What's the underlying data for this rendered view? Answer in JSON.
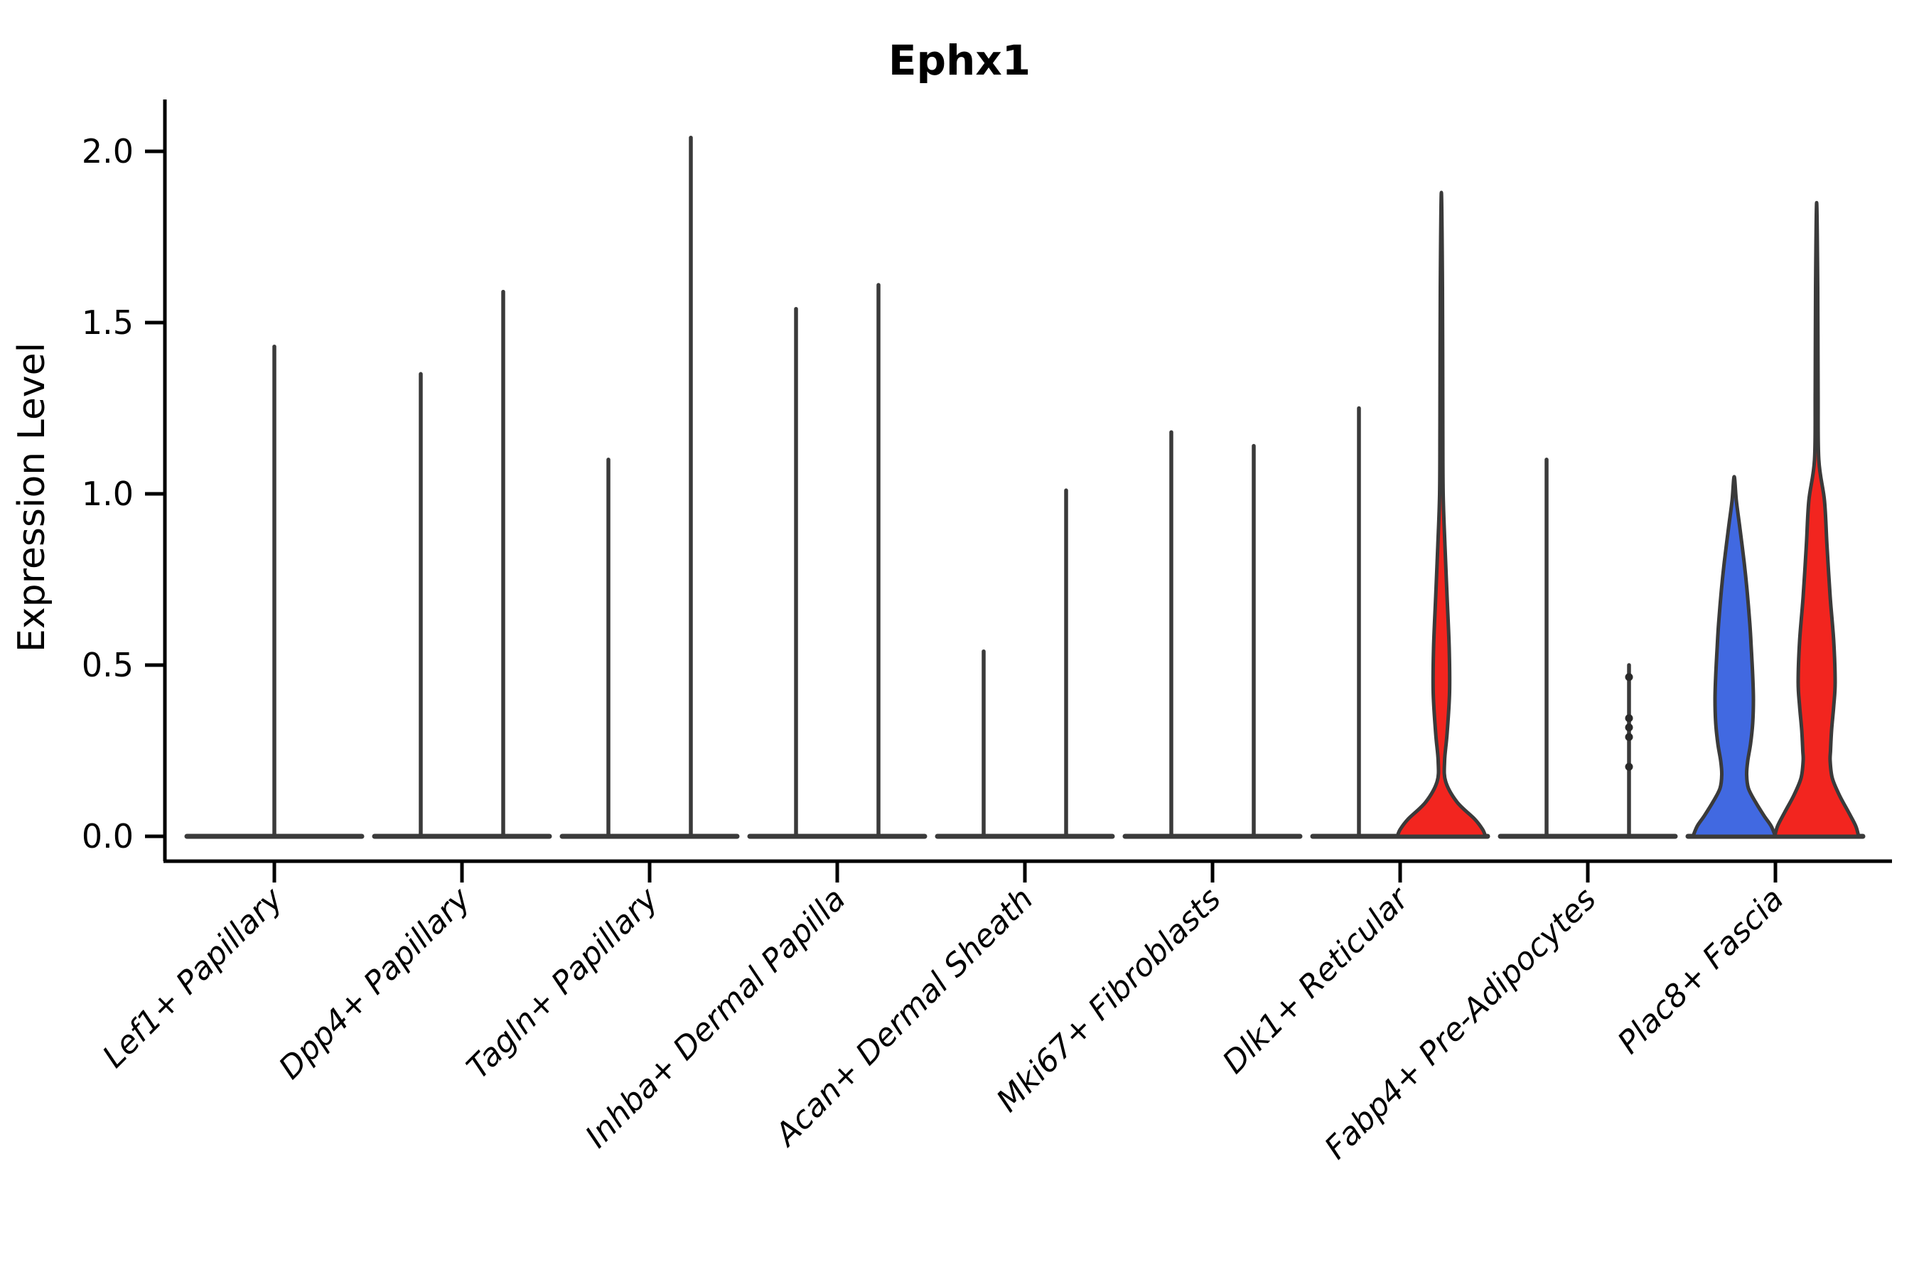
{
  "chart_data": {
    "type": "violin",
    "title": "Ephx1",
    "ylabel": "Expression Level",
    "xlabel": "",
    "yticks": [
      "0.0",
      "0.5",
      "1.0",
      "1.5",
      "2.0"
    ],
    "ytick_values": [
      0.0,
      0.5,
      1.0,
      1.5,
      2.0
    ],
    "ylim": [
      -0.07,
      2.12
    ],
    "grid": false,
    "legend": "none",
    "colors": {
      "blue_fill": "#4169E1",
      "red_fill": "#F2251F",
      "outline": "#3A3A3A",
      "axis": "#000000",
      "point": "#2A2A2A"
    },
    "categories": [
      "Lef1+ Papillary",
      "Dpp4+ Papillary",
      "Tagln+ Papillary",
      "Inhba+ Dermal Papilla",
      "Acan+ Dermal Sheath",
      "Mki67+ Fibroblasts",
      "Dlk1+ Reticular",
      "Fabp4+ Pre-Adipocytes",
      "Plac8+ Fascia"
    ],
    "violins": [
      [
        {
          "offset": 0,
          "kind": "spike",
          "max": 1.43,
          "color": "outline"
        }
      ],
      [
        {
          "offset": -58,
          "kind": "spike",
          "max": 1.35,
          "color": "outline"
        },
        {
          "offset": 58,
          "kind": "spike",
          "max": 1.59,
          "color": "outline"
        }
      ],
      [
        {
          "offset": -58,
          "kind": "spike",
          "max": 1.1,
          "color": "outline"
        },
        {
          "offset": 58,
          "kind": "spike",
          "max": 2.04,
          "color": "outline"
        }
      ],
      [
        {
          "offset": -58,
          "kind": "spike",
          "max": 1.54,
          "color": "outline"
        },
        {
          "offset": 58,
          "kind": "spike",
          "max": 1.61,
          "color": "outline"
        }
      ],
      [
        {
          "offset": -58,
          "kind": "spike",
          "max": 0.54,
          "color": "outline"
        },
        {
          "offset": 58,
          "kind": "spike",
          "max": 1.01,
          "color": "outline"
        }
      ],
      [
        {
          "offset": -58,
          "kind": "spike",
          "max": 1.18,
          "color": "outline"
        },
        {
          "offset": 58,
          "kind": "spike",
          "max": 1.14,
          "color": "outline"
        }
      ],
      [
        {
          "offset": -58,
          "kind": "spike",
          "max": 1.25,
          "color": "outline"
        },
        {
          "offset": 58,
          "kind": "violin",
          "max": 1.88,
          "profile": "dlk1_red",
          "fill": "red_fill"
        }
      ],
      [
        {
          "offset": -58,
          "kind": "spike",
          "max": 1.1,
          "color": "outline"
        },
        {
          "offset": 58,
          "kind": "spike",
          "max": 0.5,
          "color": "outline",
          "dots": [
            0.465,
            0.345,
            0.318,
            0.29,
            0.203
          ]
        }
      ],
      [
        {
          "offset": -58,
          "kind": "violin",
          "max": 1.05,
          "profile": "plac8_blue",
          "fill": "blue_fill"
        },
        {
          "offset": 58,
          "kind": "violin",
          "max": 1.85,
          "profile": "plac8_red",
          "fill": "red_fill"
        }
      ]
    ],
    "profiles": {
      "dlk1_red": [
        [
          1.88,
          0
        ],
        [
          1.6,
          1.5
        ],
        [
          1.2,
          2
        ],
        [
          1.0,
          2.5
        ],
        [
          0.85,
          5
        ],
        [
          0.7,
          8
        ],
        [
          0.55,
          11
        ],
        [
          0.42,
          11.5
        ],
        [
          0.3,
          8
        ],
        [
          0.22,
          4.5
        ],
        [
          0.16,
          6
        ],
        [
          0.1,
          22
        ],
        [
          0.05,
          47
        ],
        [
          0.02,
          58
        ],
        [
          0.0,
          62
        ]
      ],
      "plac8_blue": [
        [
          1.05,
          0
        ],
        [
          0.98,
          3
        ],
        [
          0.9,
          8
        ],
        [
          0.8,
          14
        ],
        [
          0.72,
          18
        ],
        [
          0.62,
          22
        ],
        [
          0.55,
          24
        ],
        [
          0.47,
          26
        ],
        [
          0.4,
          27
        ],
        [
          0.33,
          26
        ],
        [
          0.27,
          23
        ],
        [
          0.22,
          19
        ],
        [
          0.18,
          17.5
        ],
        [
          0.14,
          20
        ],
        [
          0.1,
          30
        ],
        [
          0.06,
          42
        ],
        [
          0.03,
          52
        ],
        [
          0.0,
          58
        ]
      ],
      "plac8_red": [
        [
          1.85,
          0
        ],
        [
          1.6,
          1.5
        ],
        [
          1.3,
          2
        ],
        [
          1.1,
          3
        ],
        [
          0.98,
          11
        ],
        [
          0.85,
          14.5
        ],
        [
          0.7,
          19
        ],
        [
          0.57,
          24
        ],
        [
          0.45,
          26
        ],
        [
          0.38,
          24
        ],
        [
          0.31,
          21
        ],
        [
          0.25,
          19.5
        ],
        [
          0.22,
          19
        ],
        [
          0.17,
          22
        ],
        [
          0.12,
          32
        ],
        [
          0.07,
          45
        ],
        [
          0.03,
          55
        ],
        [
          0.0,
          59
        ]
      ]
    }
  }
}
